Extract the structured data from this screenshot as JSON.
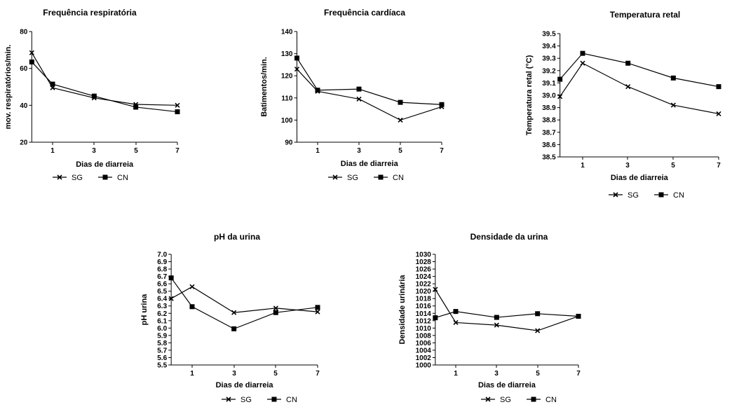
{
  "chart_data": [
    {
      "type": "line",
      "title": "Frequência respiratória",
      "xlabel": "Dias de diarreia",
      "ylabel": "mov. respiratórios/min.",
      "x": [
        0,
        1,
        3,
        5,
        7
      ],
      "xticks": [
        "1",
        "3",
        "5",
        "7"
      ],
      "ylim": [
        20,
        80
      ],
      "yticks": [
        "20",
        "40",
        "60",
        "80"
      ],
      "series": [
        {
          "name": "SG",
          "marker": "x",
          "values": [
            68.5,
            49.5,
            44.0,
            40.5,
            40.0
          ]
        },
        {
          "name": "CN",
          "marker": "square",
          "values": [
            63.5,
            51.5,
            45.0,
            39.0,
            36.5
          ]
        }
      ],
      "legend": "bottom"
    },
    {
      "type": "line",
      "title": "Frequência cardíaca",
      "xlabel": "Dias de diarreia",
      "ylabel": "Batimentos/min.",
      "x": [
        0,
        1,
        3,
        5,
        7
      ],
      "xticks": [
        "1",
        "3",
        "5",
        "7"
      ],
      "ylim": [
        90,
        140
      ],
      "yticks": [
        "90",
        "100",
        "110",
        "120",
        "130",
        "140"
      ],
      "series": [
        {
          "name": "SG",
          "marker": "x",
          "values": [
            123,
            113,
            109.5,
            100,
            106
          ]
        },
        {
          "name": "CN",
          "marker": "square",
          "values": [
            128,
            113.5,
            114,
            108,
            107
          ]
        }
      ],
      "legend": "bottom"
    },
    {
      "type": "line",
      "title": "Temperatura retal",
      "xlabel": "Dias de diarreia",
      "ylabel": "Temperatura retal (°C)",
      "x": [
        0,
        1,
        3,
        5,
        7
      ],
      "xticks": [
        "1",
        "3",
        "5",
        "7"
      ],
      "ylim": [
        38.5,
        39.5
      ],
      "yticks": [
        "38.5",
        "38.6",
        "38.7",
        "38.8",
        "38.9",
        "39.0",
        "39.1",
        "39.2",
        "39.3",
        "39.4",
        "39.5"
      ],
      "series": [
        {
          "name": "SG",
          "marker": "x",
          "values": [
            38.99,
            39.26,
            39.07,
            38.92,
            38.85
          ]
        },
        {
          "name": "CN",
          "marker": "square",
          "values": [
            39.13,
            39.34,
            39.26,
            39.14,
            39.07
          ]
        }
      ],
      "legend": "bottom"
    },
    {
      "type": "line",
      "title": "pH da urina",
      "xlabel": "Dias de diarreia",
      "ylabel": "pH urina",
      "x": [
        0,
        1,
        3,
        5,
        7
      ],
      "xticks": [
        "1",
        "3",
        "5",
        "7"
      ],
      "ylim": [
        5.5,
        7.0
      ],
      "yticks": [
        "5.5",
        "5.6",
        "5.7",
        "5.8",
        "5.9",
        "6.0",
        "6.1",
        "6.2",
        "6.3",
        "6.4",
        "6.5",
        "6.6",
        "6.7",
        "6.8",
        "6.9",
        "7.0"
      ],
      "series": [
        {
          "name": "SG",
          "marker": "x",
          "values": [
            6.4,
            6.56,
            6.21,
            6.27,
            6.22
          ]
        },
        {
          "name": "CN",
          "marker": "square",
          "values": [
            6.68,
            6.29,
            5.99,
            6.21,
            6.28
          ]
        }
      ],
      "legend": "bottom"
    },
    {
      "type": "line",
      "title": "Densidade da urina",
      "xlabel": "Dias de diarreia",
      "ylabel": "Densidade urinária",
      "x": [
        0,
        1,
        3,
        5,
        7
      ],
      "xticks": [
        "1",
        "3",
        "5",
        "7"
      ],
      "ylim": [
        1000,
        1030
      ],
      "yticks": [
        "1000",
        "1002",
        "1004",
        "1006",
        "1008",
        "1010",
        "1012",
        "1014",
        "1016",
        "1018",
        "1020",
        "1022",
        "1024",
        "1026",
        "1028",
        "1030"
      ],
      "series": [
        {
          "name": "SG",
          "marker": "x",
          "values": [
            1020.5,
            1011.5,
            1010.8,
            1009.3,
            1013.2
          ]
        },
        {
          "name": "CN",
          "marker": "square",
          "values": [
            1012.8,
            1014.5,
            1012.9,
            1013.9,
            1013.2
          ]
        }
      ],
      "legend": "bottom"
    }
  ]
}
